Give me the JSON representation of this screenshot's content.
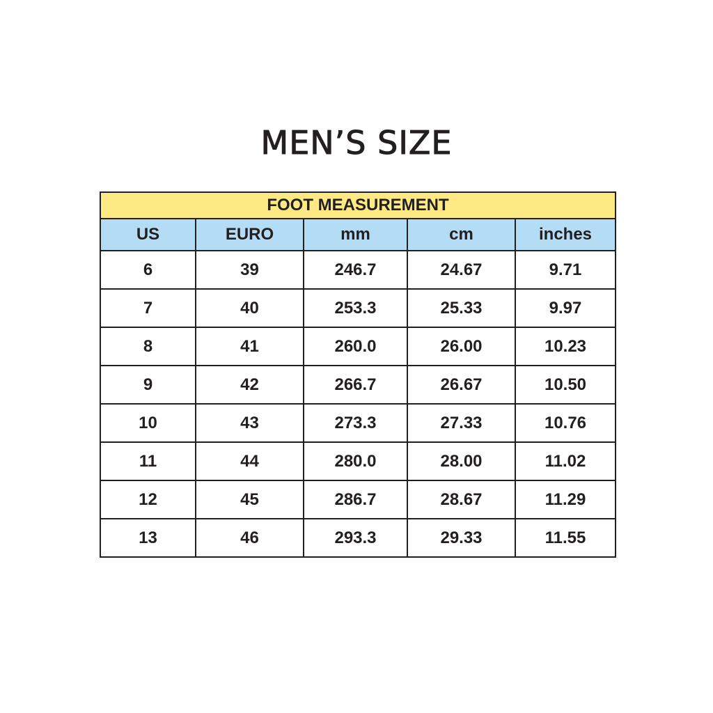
{
  "title": "MEN’S SIZE",
  "table": {
    "caption": "FOOT MEASUREMENT",
    "headers": [
      "US",
      "EURO",
      "mm",
      "cm",
      "inches"
    ],
    "rows": [
      [
        "6",
        "39",
        "246.7",
        "24.67",
        "9.71"
      ],
      [
        "7",
        "40",
        "253.3",
        "25.33",
        "9.97"
      ],
      [
        "8",
        "41",
        "260.0",
        "26.00",
        "10.23"
      ],
      [
        "9",
        "42",
        "266.7",
        "26.67",
        "10.50"
      ],
      [
        "10",
        "43",
        "273.3",
        "27.33",
        "10.76"
      ],
      [
        "11",
        "44",
        "280.0",
        "28.00",
        "11.02"
      ],
      [
        "12",
        "45",
        "286.7",
        "28.67",
        "11.29"
      ],
      [
        "13",
        "46",
        "293.3",
        "29.33",
        "11.55"
      ]
    ]
  },
  "colors": {
    "caption_bg": "#fdea84",
    "header_bg": "#b4dcf4",
    "border": "#231f20"
  }
}
